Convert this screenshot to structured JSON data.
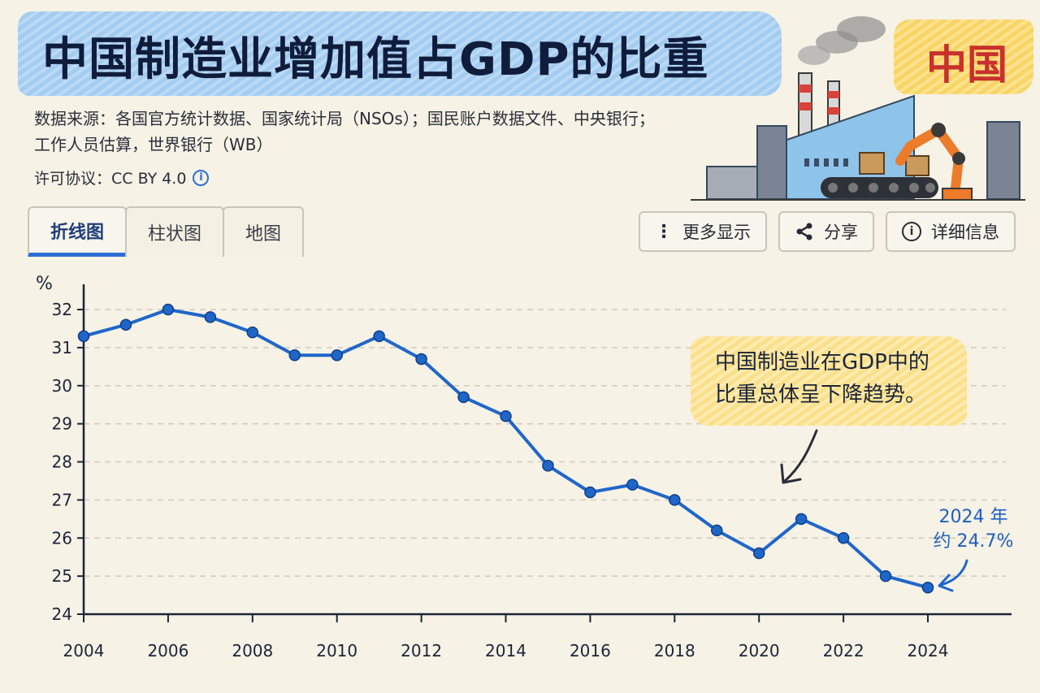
{
  "header": {
    "title": "中国制造业增加值占GDP的比重",
    "country": "中国",
    "source_line1": "数据来源：各国官方统计数据、国家统计局（NSOs）；国民账户数据文件、中央银行；",
    "source_line2": "工作人员估算，世界银行（WB）",
    "license": "许可协议：CC BY 4.0",
    "info_icon": "info-icon"
  },
  "tabs": [
    {
      "label": "折线图",
      "active": true
    },
    {
      "label": "柱状图",
      "active": false
    },
    {
      "label": "地图",
      "active": false
    }
  ],
  "actions": {
    "more": "更多显示",
    "share": "分享",
    "details": "详细信息",
    "icons": [
      "more-vertical-icon",
      "share-icon",
      "info-icon"
    ]
  },
  "annotation": {
    "line1": "中国制造业在GDP中的",
    "line2": "比重总体呈下降趋势。",
    "last_line1": "2024 年",
    "last_line2": "约 24.7%"
  },
  "colors": {
    "line": "#1f66c9",
    "accent": "#2f6fd6",
    "country": "#c8302c",
    "title_band": "#9fcaf0",
    "note_band": "#fbe08a"
  },
  "chart_data": {
    "type": "line",
    "title": "中国制造业增加值占GDP的比重",
    "ylabel": "%",
    "xlabel": "",
    "ylim": [
      24,
      32
    ],
    "xlim": [
      2004,
      2024
    ],
    "x_ticks": [
      2004,
      2006,
      2008,
      2010,
      2012,
      2014,
      2016,
      2018,
      2020,
      2022,
      2024
    ],
    "y_ticks": [
      24,
      25,
      26,
      27,
      28,
      29,
      30,
      31,
      32
    ],
    "grid": true,
    "legend": "none",
    "series": [
      {
        "x": [
          2004,
          2005,
          2006,
          2007,
          2008,
          2009,
          2010,
          2011,
          2012,
          2013,
          2014,
          2015,
          2016,
          2017,
          2018,
          2019,
          2020,
          2021,
          2022,
          2023,
          2024
        ],
        "values": [
          31.3,
          31.6,
          32.0,
          31.8,
          31.4,
          30.8,
          30.8,
          31.3,
          30.7,
          29.7,
          29.2,
          27.9,
          27.2,
          27.4,
          27.0,
          26.2,
          25.6,
          26.5,
          26.0,
          25.0,
          24.7
        ]
      }
    ]
  }
}
